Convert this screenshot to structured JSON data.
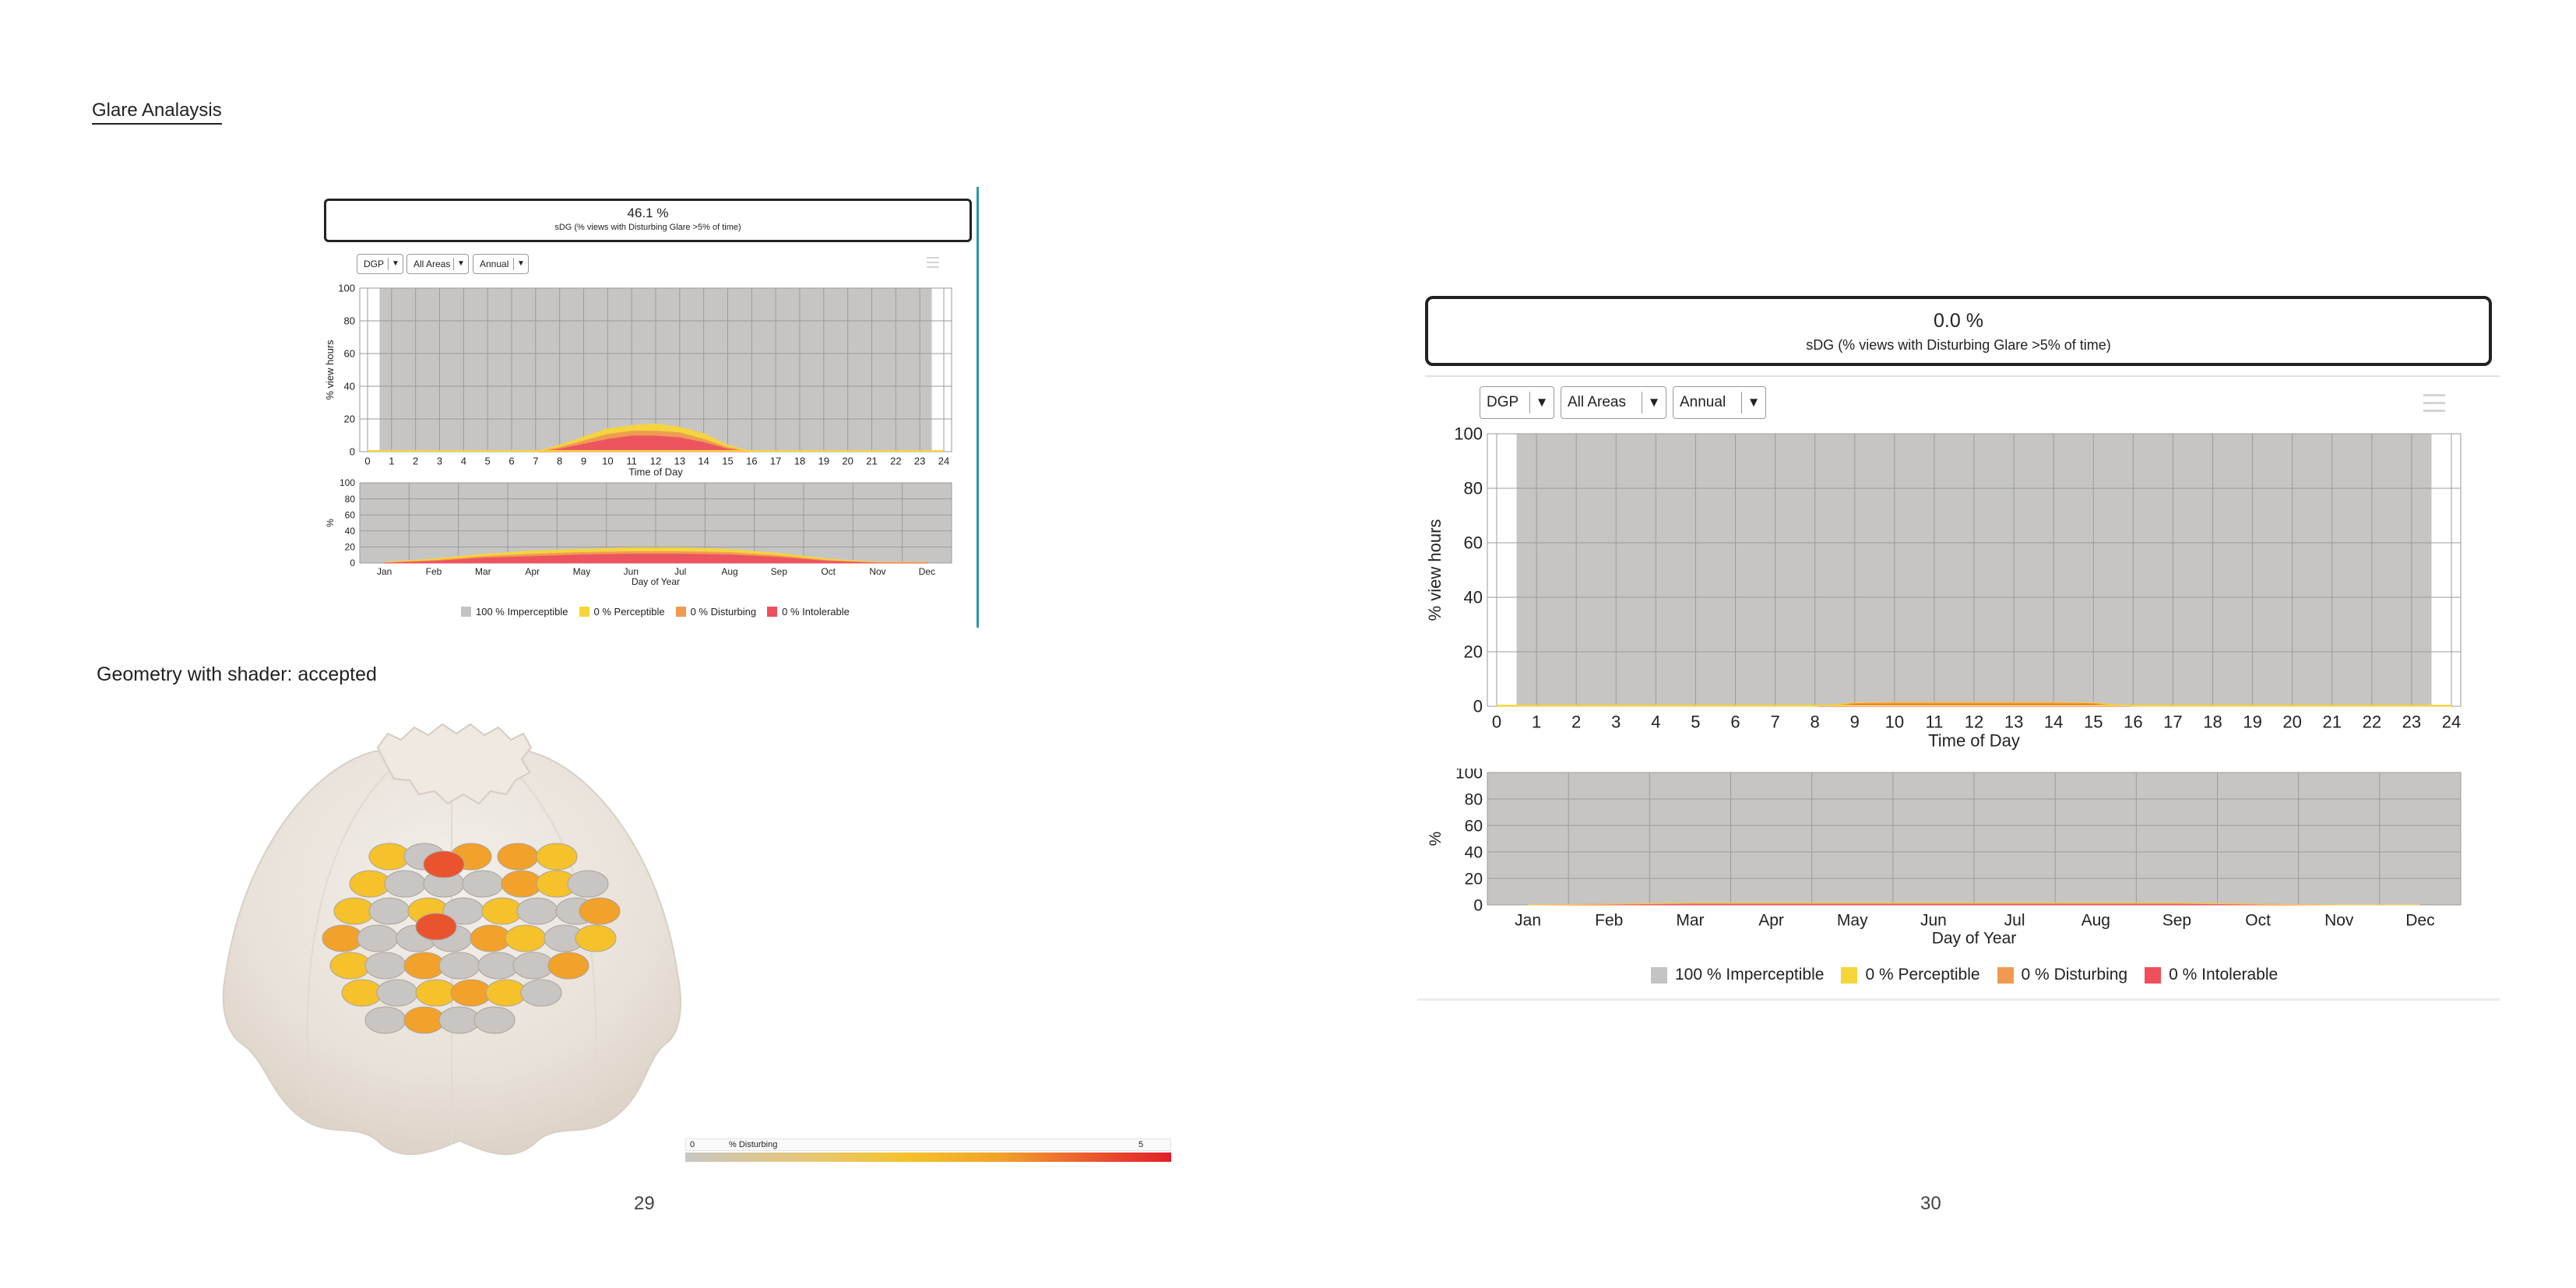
{
  "document": {
    "title": "Glare Analaysis",
    "caption": "Geometry with shader: accepted",
    "page_left": "29",
    "page_right": "30"
  },
  "colors": {
    "imperceptible": "#c3c3c3",
    "perceptible": "#f7d538",
    "disturbing": "#f19a4f",
    "intolerable": "#ef4f5a",
    "plot_bg": "#c6c5c4",
    "grid": "#9b9b9b",
    "accent_line": "#2a9aa6"
  },
  "small_panel": {
    "kpi_value": "46.1 %",
    "kpi_label": "sDG (% views with Disturbing Glare >5% of time)",
    "metric": "DGP",
    "area": "All Areas",
    "period": "Annual",
    "legend": [
      "100 % Imperceptible",
      "0 % Perceptible",
      "0 % Disturbing",
      "0 % Intolerable"
    ]
  },
  "large_panel": {
    "kpi_value": "0.0 %",
    "kpi_label": "sDG (% views with Disturbing Glare >5% of time)",
    "metric": "DGP",
    "area": "All Areas",
    "period": "Annual",
    "legend": [
      "100 % Imperceptible",
      "0 % Perceptible",
      "0 % Disturbing",
      "0 % Intolerable"
    ]
  },
  "gradient_legend": {
    "min": "0",
    "label": "% Disturbing",
    "max": "5"
  },
  "chart_data": [
    {
      "type": "area",
      "xlabel": "Time of Day",
      "ylabel": "% view hours",
      "x": [
        0,
        1,
        2,
        3,
        4,
        5,
        6,
        7,
        8,
        9,
        10,
        11,
        12,
        13,
        14,
        15,
        16,
        17,
        18,
        19,
        20,
        21,
        22,
        23,
        24
      ],
      "xlim": [
        0,
        24
      ],
      "ylim": [
        0,
        100
      ],
      "yticks": [
        0,
        20,
        40,
        60,
        80,
        100
      ],
      "series": [
        {
          "name": "Intolerable",
          "x": [
            7,
            8,
            9,
            10,
            11,
            12,
            13,
            14,
            15,
            16
          ],
          "values": [
            0,
            2,
            5,
            8,
            10,
            10,
            9,
            6,
            2,
            0
          ]
        },
        {
          "name": "Disturbing",
          "x": [
            7,
            8,
            9,
            10,
            11,
            12,
            13,
            14,
            15,
            16
          ],
          "values": [
            0,
            1,
            2,
            3,
            3,
            3,
            3,
            2,
            1,
            0
          ]
        },
        {
          "name": "Perceptible",
          "x": [
            7,
            8,
            9,
            10,
            11,
            12,
            13,
            14,
            15,
            16
          ],
          "values": [
            0,
            1,
            2,
            3,
            3,
            4,
            3,
            3,
            1,
            0
          ]
        }
      ]
    },
    {
      "type": "area",
      "xlabel": "Day of Year",
      "ylabel": "%",
      "categories": [
        "Jan",
        "Feb",
        "Mar",
        "Apr",
        "May",
        "Jun",
        "Jul",
        "Aug",
        "Sep",
        "Oct",
        "Nov",
        "Dec"
      ],
      "ylim": [
        0,
        100
      ],
      "yticks": [
        0,
        20,
        40,
        60,
        80,
        100
      ],
      "series": [
        {
          "name": "Intolerable",
          "values": [
            1,
            3,
            7,
            9,
            11,
            12,
            12,
            11,
            8,
            3,
            1,
            1
          ]
        },
        {
          "name": "Disturbing",
          "values": [
            0,
            1,
            2,
            3,
            3,
            3,
            3,
            3,
            2,
            1,
            0,
            0
          ]
        },
        {
          "name": "Perceptible",
          "values": [
            0,
            1,
            2,
            3,
            3,
            4,
            4,
            3,
            2,
            1,
            0,
            0
          ]
        }
      ]
    },
    {
      "type": "area",
      "xlabel": "Time of Day",
      "ylabel": "% view hours",
      "x": [
        0,
        1,
        2,
        3,
        4,
        5,
        6,
        7,
        8,
        9,
        10,
        11,
        12,
        13,
        14,
        15,
        16,
        17,
        18,
        19,
        20,
        21,
        22,
        23,
        24
      ],
      "xlim": [
        0,
        24
      ],
      "ylim": [
        0,
        100
      ],
      "yticks": [
        0,
        20,
        40,
        60,
        80,
        100
      ],
      "series": [
        {
          "name": "Intolerable",
          "x": [
            8,
            9,
            10,
            11,
            12,
            13,
            14,
            15,
            16
          ],
          "values": [
            0,
            1,
            1,
            1,
            1,
            1,
            1,
            1,
            0
          ]
        },
        {
          "name": "Disturbing",
          "x": [
            8,
            9,
            10,
            11,
            12,
            13,
            14,
            15,
            16
          ],
          "values": [
            0,
            0.3,
            0.5,
            0.5,
            0.5,
            0.5,
            0.5,
            0.3,
            0
          ]
        },
        {
          "name": "Perceptible",
          "x": [
            0,
            24
          ],
          "values": [
            0,
            0
          ]
        }
      ]
    },
    {
      "type": "area",
      "xlabel": "Day of Year",
      "ylabel": "%",
      "categories": [
        "Jan",
        "Feb",
        "Mar",
        "Apr",
        "May",
        "Jun",
        "Jul",
        "Aug",
        "Sep",
        "Oct",
        "Nov",
        "Dec"
      ],
      "ylim": [
        0,
        100
      ],
      "yticks": [
        0,
        20,
        40,
        60,
        80,
        100
      ],
      "series": [
        {
          "name": "Intolerable",
          "values": [
            0,
            0.5,
            1,
            1,
            1,
            1,
            1,
            1,
            1,
            0.5,
            0,
            0
          ]
        },
        {
          "name": "Disturbing",
          "values": [
            0,
            0,
            0.3,
            0.3,
            0.3,
            0.3,
            0.3,
            0.3,
            0.3,
            0,
            0,
            0
          ]
        },
        {
          "name": "Perceptible",
          "values": [
            0,
            0,
            0,
            0,
            0,
            0,
            0,
            0,
            0,
            0,
            0,
            0
          ]
        }
      ]
    }
  ]
}
